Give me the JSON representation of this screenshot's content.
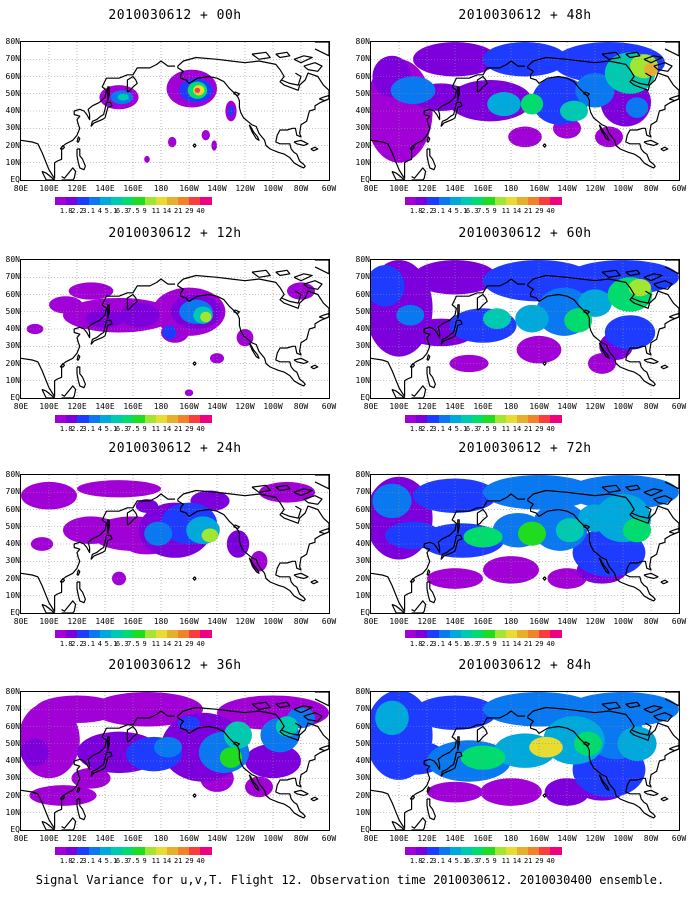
{
  "figure": {
    "caption": "Signal Variance for u,v,T. Flight 12. Observation time 2010030612. 2010030400 ensemble.",
    "x_ticks": [
      "80E",
      "100E",
      "120E",
      "140E",
      "160E",
      "180",
      "160W",
      "140W",
      "120W",
      "100W",
      "80W",
      "60W"
    ],
    "y_ticks": [
      "80N",
      "70N",
      "60N",
      "50N",
      "40N",
      "30N",
      "20N",
      "10N",
      "EQ"
    ],
    "colorbar": {
      "labels": [
        "1.8",
        "2.2",
        "3.1",
        "4",
        "5.1",
        "6.3",
        "7.5",
        "9",
        "11",
        "14",
        "21",
        "29",
        "40"
      ],
      "colors": [
        "#a100d6",
        "#7d00dc",
        "#1e3cff",
        "#0a78f0",
        "#00a9dc",
        "#00c9b2",
        "#00dc6e",
        "#1edc1e",
        "#a0e632",
        "#e6dc32",
        "#e6af2d",
        "#f0822a",
        "#fa3c3c",
        "#f00082"
      ]
    },
    "panels": [
      {
        "title": "2010030612 + 00h",
        "lead": 0
      },
      {
        "title": "2010030612 + 48h",
        "lead": 48
      },
      {
        "title": "2010030612 + 12h",
        "lead": 12
      },
      {
        "title": "2010030612 + 60h",
        "lead": 60
      },
      {
        "title": "2010030612 + 24h",
        "lead": 24
      },
      {
        "title": "2010030612 + 72h",
        "lead": 72
      },
      {
        "title": "2010030612 + 36h",
        "lead": 36
      },
      {
        "title": "2010030612 + 84h",
        "lead": 84
      }
    ]
  }
}
